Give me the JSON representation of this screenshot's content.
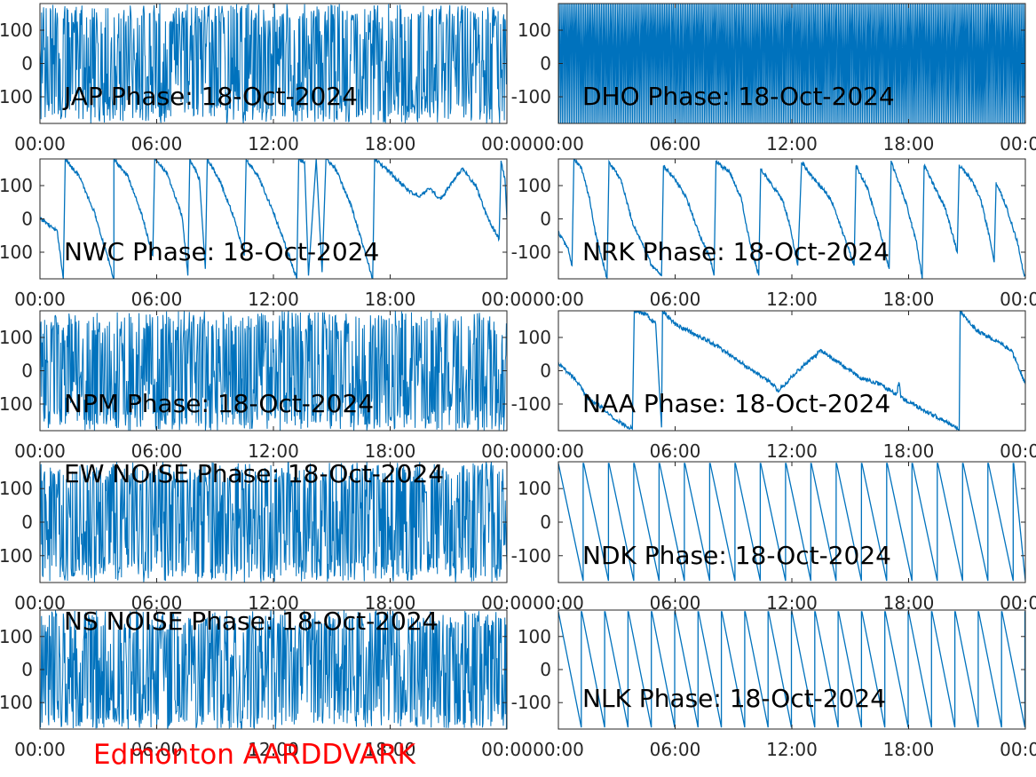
{
  "figure": {
    "footer_text": "Edmonton AARDDVARK",
    "footer_color": "#ff0000",
    "line_color": "#0072bd",
    "axis_color": "#262626"
  },
  "chart_data": [
    {
      "id": "jap",
      "type": "line",
      "title": "JAP Phase: 18-Oct-2024",
      "xlim": [
        0,
        24
      ],
      "ylim": [
        -180,
        180
      ],
      "xticks": [
        "00:00",
        "06:00",
        "12:00",
        "18:00",
        "00:00"
      ],
      "yticks": [
        "-100",
        "0",
        "100"
      ],
      "pattern": "noise",
      "x_unit": "hours",
      "y_unit": "degrees"
    },
    {
      "id": "dho",
      "type": "line",
      "title": "DHO Phase: 18-Oct-2024",
      "xlim": [
        0,
        24
      ],
      "ylim": [
        -180,
        180
      ],
      "xticks": [
        "00:00",
        "06:00",
        "12:00",
        "18:00",
        "00:00"
      ],
      "yticks": [
        "-100",
        "0",
        "100"
      ],
      "pattern": "fast-wrap",
      "x_unit": "hours",
      "y_unit": "degrees"
    },
    {
      "id": "nwc",
      "type": "line",
      "title": "NWC Phase: 18-Oct-2024",
      "xlim": [
        0,
        24
      ],
      "ylim": [
        -180,
        180
      ],
      "xticks": [
        "00:00",
        "06:00",
        "12:00",
        "18:00",
        "00:00"
      ],
      "yticks": [
        "-100",
        "0",
        "100"
      ],
      "pattern": "sawtooth",
      "x_unit": "hours",
      "y_unit": "degrees",
      "points": [
        [
          0,
          0
        ],
        [
          0.3,
          -10
        ],
        [
          0.9,
          -40
        ],
        [
          1.2,
          -180
        ],
        [
          1.3,
          180
        ],
        [
          2.0,
          130
        ],
        [
          2.8,
          20
        ],
        [
          3.8,
          -180
        ],
        [
          3.8,
          180
        ],
        [
          4.5,
          130
        ],
        [
          5.2,
          20
        ],
        [
          5.8,
          -110
        ],
        [
          5.9,
          180
        ],
        [
          6.5,
          140
        ],
        [
          7.3,
          10
        ],
        [
          7.6,
          -170
        ],
        [
          7.7,
          180
        ],
        [
          8.2,
          120
        ],
        [
          8.5,
          -150
        ],
        [
          8.6,
          180
        ],
        [
          9.2,
          120
        ],
        [
          10.0,
          0
        ],
        [
          10.5,
          -110
        ],
        [
          10.6,
          180
        ],
        [
          11.2,
          130
        ],
        [
          12.0,
          20
        ],
        [
          12.8,
          -110
        ],
        [
          13.2,
          -180
        ],
        [
          13.3,
          180
        ],
        [
          13.6,
          170
        ],
        [
          13.8,
          -170
        ],
        [
          14.2,
          180
        ],
        [
          14.5,
          -160
        ],
        [
          14.7,
          180
        ],
        [
          15.2,
          150
        ],
        [
          16.0,
          40
        ],
        [
          16.7,
          -100
        ],
        [
          17.1,
          -180
        ],
        [
          17.2,
          180
        ],
        [
          17.8,
          150
        ],
        [
          18.5,
          110
        ],
        [
          19.0,
          80
        ],
        [
          19.5,
          70
        ],
        [
          20.0,
          90
        ],
        [
          20.6,
          60
        ],
        [
          21.2,
          110
        ],
        [
          21.7,
          150
        ],
        [
          22.4,
          100
        ],
        [
          22.9,
          20
        ],
        [
          23.3,
          -30
        ],
        [
          23.6,
          -60
        ],
        [
          23.7,
          170
        ],
        [
          23.9,
          120
        ],
        [
          24,
          0
        ]
      ]
    },
    {
      "id": "nrk",
      "type": "line",
      "title": "NRK Phase: 18-Oct-2024",
      "xlim": [
        0,
        24
      ],
      "ylim": [
        -180,
        180
      ],
      "xticks": [
        "00:00",
        "06:00",
        "12:00",
        "18:00",
        "00:00"
      ],
      "yticks": [
        "-100",
        "0",
        "100"
      ],
      "pattern": "sawtooth",
      "x_unit": "hours",
      "y_unit": "degrees",
      "points": [
        [
          0,
          -40
        ],
        [
          0.5,
          -90
        ],
        [
          0.7,
          -140
        ],
        [
          0.8,
          180
        ],
        [
          1.2,
          150
        ],
        [
          1.6,
          60
        ],
        [
          1.9,
          -40
        ],
        [
          2.5,
          -180
        ],
        [
          2.6,
          170
        ],
        [
          3.2,
          120
        ],
        [
          3.8,
          -10
        ],
        [
          4.2,
          -60
        ],
        [
          4.8,
          -140
        ],
        [
          5.3,
          -170
        ],
        [
          5.4,
          160
        ],
        [
          6.0,
          120
        ],
        [
          6.6,
          60
        ],
        [
          7.2,
          -40
        ],
        [
          7.8,
          -120
        ],
        [
          8.0,
          -170
        ],
        [
          8.1,
          170
        ],
        [
          8.8,
          140
        ],
        [
          9.4,
          60
        ],
        [
          9.8,
          -60
        ],
        [
          10.3,
          -170
        ],
        [
          10.4,
          150
        ],
        [
          11.0,
          100
        ],
        [
          11.5,
          60
        ],
        [
          11.9,
          -20
        ],
        [
          12.3,
          -140
        ],
        [
          12.5,
          170
        ],
        [
          13.0,
          130
        ],
        [
          13.6,
          90
        ],
        [
          14.0,
          60
        ],
        [
          14.5,
          -20
        ],
        [
          15.2,
          -140
        ],
        [
          15.3,
          160
        ],
        [
          15.9,
          90
        ],
        [
          16.5,
          -30
        ],
        [
          17.0,
          -150
        ],
        [
          17.1,
          170
        ],
        [
          17.5,
          110
        ],
        [
          17.9,
          40
        ],
        [
          18.4,
          -70
        ],
        [
          18.7,
          -180
        ],
        [
          18.8,
          160
        ],
        [
          19.3,
          100
        ],
        [
          19.9,
          30
        ],
        [
          20.5,
          -100
        ],
        [
          20.6,
          160
        ],
        [
          21.2,
          120
        ],
        [
          21.7,
          60
        ],
        [
          22.1,
          -40
        ],
        [
          22.4,
          -130
        ],
        [
          22.5,
          110
        ],
        [
          23.0,
          40
        ],
        [
          23.6,
          -70
        ],
        [
          23.9,
          -160
        ],
        [
          24,
          -170
        ]
      ]
    },
    {
      "id": "npm",
      "type": "line",
      "title": "NPM Phase: 18-Oct-2024",
      "xlim": [
        0,
        24
      ],
      "ylim": [
        -180,
        180
      ],
      "xticks": [
        "00:00",
        "06:00",
        "12:00",
        "18:00",
        "00:00"
      ],
      "yticks": [
        "-100",
        "0",
        "100"
      ],
      "pattern": "noise",
      "x_unit": "hours",
      "y_unit": "degrees"
    },
    {
      "id": "naa",
      "type": "line",
      "title": "NAA Phase: 18-Oct-2024",
      "xlim": [
        0,
        24
      ],
      "ylim": [
        -180,
        180
      ],
      "xticks": [
        "00:00",
        "06:00",
        "12:00",
        "18:00",
        "00:00"
      ],
      "yticks": [
        "-100",
        "0",
        "100"
      ],
      "pattern": "sawtooth",
      "x_unit": "hours",
      "y_unit": "degrees",
      "points": [
        [
          0,
          20
        ],
        [
          0.8,
          -20
        ],
        [
          1.5,
          -80
        ],
        [
          2.2,
          -110
        ],
        [
          3.0,
          -150
        ],
        [
          3.8,
          -175
        ],
        [
          3.9,
          180
        ],
        [
          4.5,
          170
        ],
        [
          5.0,
          140
        ],
        [
          5.3,
          -170
        ],
        [
          5.35,
          180
        ],
        [
          6.0,
          140
        ],
        [
          7.0,
          110
        ],
        [
          8.0,
          80
        ],
        [
          9.0,
          40
        ],
        [
          10.0,
          0
        ],
        [
          11.0,
          -40
        ],
        [
          11.3,
          -60
        ],
        [
          11.8,
          -30
        ],
        [
          12.5,
          10
        ],
        [
          13.5,
          60
        ],
        [
          14.5,
          20
        ],
        [
          15.5,
          -20
        ],
        [
          16.5,
          -40
        ],
        [
          17.4,
          -70
        ],
        [
          17.5,
          -30
        ],
        [
          17.6,
          -80
        ],
        [
          18.5,
          -110
        ],
        [
          19.5,
          -140
        ],
        [
          20.5,
          -170
        ],
        [
          20.6,
          -180
        ],
        [
          20.65,
          180
        ],
        [
          21.5,
          120
        ],
        [
          22.5,
          90
        ],
        [
          23.3,
          60
        ],
        [
          24,
          -40
        ]
      ]
    },
    {
      "id": "ew_noise",
      "type": "line",
      "title": "EW NOISE Phase: 18-Oct-2024",
      "xlim": [
        0,
        24
      ],
      "ylim": [
        -180,
        180
      ],
      "xticks": [
        "00:00",
        "06:00",
        "12:00",
        "18:00",
        "00:00"
      ],
      "yticks": [
        "-100",
        "0",
        "100"
      ],
      "pattern": "noise",
      "x_unit": "hours",
      "y_unit": "degrees"
    },
    {
      "id": "ndk",
      "type": "line",
      "title": "NDK Phase: 18-Oct-2024",
      "xlim": [
        0,
        24
      ],
      "ylim": [
        -180,
        180
      ],
      "xticks": [
        "00:00",
        "06:00",
        "12:00",
        "18:00",
        "00:00"
      ],
      "yticks": [
        "-100",
        "0",
        "100"
      ],
      "pattern": "regular-sawtooth",
      "period_hours": 1.3,
      "x_unit": "hours",
      "y_unit": "degrees"
    },
    {
      "id": "ns_noise",
      "type": "line",
      "title": "NS NOISE Phase: 18-Oct-2024",
      "xlim": [
        0,
        24
      ],
      "ylim": [
        -180,
        180
      ],
      "xticks": [
        "00:00",
        "06:00",
        "12:00",
        "18:00",
        "00:00"
      ],
      "yticks": [
        "-100",
        "0",
        "100"
      ],
      "pattern": "noise",
      "x_unit": "hours",
      "y_unit": "degrees"
    },
    {
      "id": "nlk",
      "type": "line",
      "title": "NLK Phase: 18-Oct-2024",
      "xlim": [
        0,
        24
      ],
      "ylim": [
        -180,
        180
      ],
      "xticks": [
        "00:00",
        "06:00",
        "12:00",
        "18:00",
        "00:00"
      ],
      "yticks": [
        "-100",
        "0",
        "100"
      ],
      "pattern": "regular-sawtooth",
      "period_hours": 1.2,
      "x_unit": "hours",
      "y_unit": "degrees"
    }
  ]
}
